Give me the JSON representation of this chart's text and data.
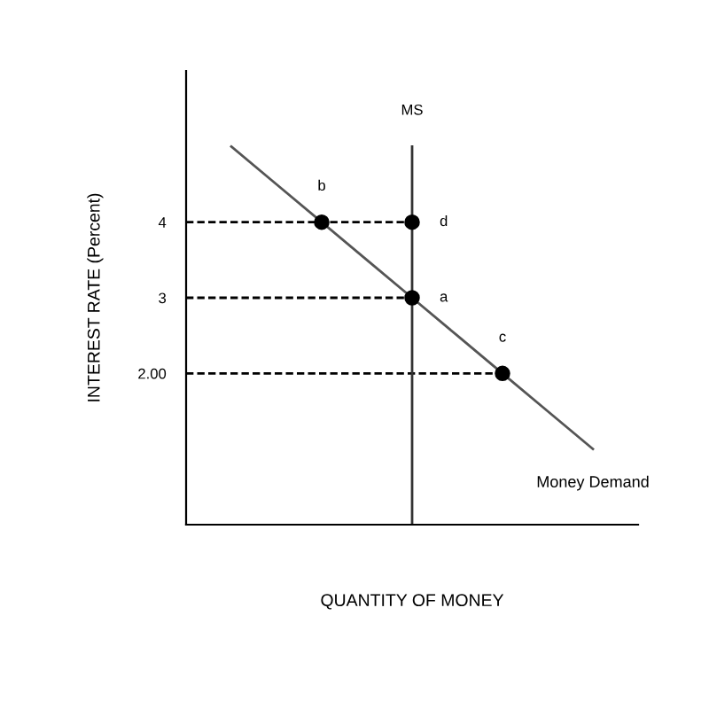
{
  "chart_data": {
    "type": "line",
    "xlabel": "QUANTITY OF MONEY",
    "ylabel": "INTEREST RATE (Percent)",
    "categories": [
      null,
      null,
      null,
      null,
      null,
      null,
      null,
      null,
      null,
      null,
      null
    ],
    "ylim": [
      0,
      6
    ],
    "yticks": [
      4,
      3,
      {
        "value": 2,
        "label": "2.00"
      }
    ],
    "tick_labels": "y",
    "grid": false,
    "series": [
      {
        "name": "Money Demand",
        "color": "#555555",
        "values": [
          null,
          5,
          4.5,
          4,
          3.5,
          3,
          2.5,
          2,
          1.5,
          1,
          null
        ],
        "line_style": "solid",
        "marker": "none"
      },
      {
        "color": "#000000",
        "values": [
          4,
          4,
          4,
          4,
          4,
          4,
          null,
          null,
          null,
          null,
          null
        ],
        "line_style": "dashed",
        "marker": "none"
      },
      {
        "color": "#000000",
        "values": [
          3,
          3,
          3,
          3,
          3,
          3,
          null,
          null,
          null,
          null,
          null
        ],
        "line_style": "dashed",
        "marker": "none"
      },
      {
        "color": "#000000",
        "values": [
          2,
          2,
          2,
          2,
          2,
          2,
          2,
          2,
          null,
          null,
          null
        ],
        "line_style": "dashed",
        "marker": "none"
      },
      {
        "type": "scatter",
        "color": "#000000",
        "values": [
          null,
          null,
          null,
          4,
          null,
          3,
          null,
          2,
          null,
          null,
          null
        ],
        "marker": "circle",
        "value_labels": [
          null,
          null,
          null,
          "b",
          null,
          "a",
          null,
          "c",
          null,
          null,
          null
        ]
      },
      {
        "type": "scatter",
        "color": "#000000",
        "values": [
          null,
          null,
          null,
          null,
          null,
          4,
          null,
          null,
          null,
          null,
          null
        ],
        "marker": "circle",
        "value_labels": [
          null,
          null,
          null,
          null,
          null,
          "d",
          null,
          null,
          null,
          null,
          null
        ]
      }
    ],
    "annotations": [
      "MS"
    ]
  }
}
